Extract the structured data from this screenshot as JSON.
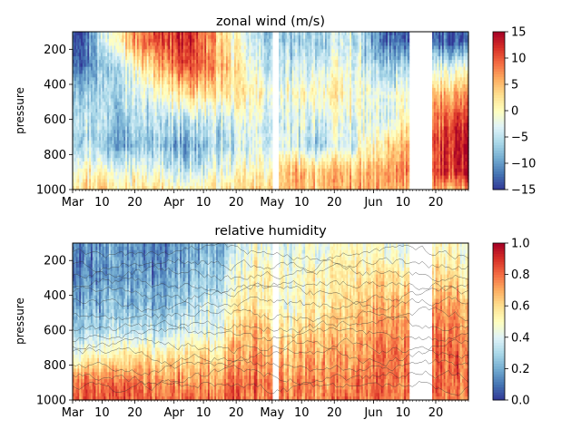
{
  "chart_data": [
    {
      "type": "heatmap",
      "title": "zonal wind (m/s)",
      "xlabel": "",
      "ylabel": "pressure",
      "x_range": [
        "2000-03-01",
        "2000-06-30"
      ],
      "x_ticks": [
        {
          "date": "2000-03-01",
          "label": "Mar"
        },
        {
          "date": "2000-03-10",
          "label": "10"
        },
        {
          "date": "2000-03-20",
          "label": "20"
        },
        {
          "date": "2000-04-01",
          "label": "Apr"
        },
        {
          "date": "2000-04-10",
          "label": "10"
        },
        {
          "date": "2000-04-20",
          "label": "20"
        },
        {
          "date": "2000-05-01",
          "label": "May"
        },
        {
          "date": "2000-05-10",
          "label": "10"
        },
        {
          "date": "2000-05-20",
          "label": "20"
        },
        {
          "date": "2000-06-01",
          "label": "Jun"
        },
        {
          "date": "2000-06-10",
          "label": "10"
        },
        {
          "date": "2000-06-20",
          "label": "20"
        }
      ],
      "y_range": [
        1000,
        100
      ],
      "y_inverted": true,
      "y_ticks": [
        200,
        400,
        600,
        800,
        1000
      ],
      "colormap": "RdYlBu_r",
      "colorbar": {
        "min": -15,
        "max": 15,
        "ticks": [
          -15,
          -10,
          -5,
          0,
          5,
          10,
          15
        ]
      },
      "missing_periods": [
        [
          "2000-05-01",
          "2000-05-02"
        ],
        [
          "2000-06-12",
          "2000-06-18"
        ]
      ],
      "profiles": [
        {
          "date": "2000-03-05",
          "pressure": [
            150,
            300,
            450,
            600,
            750,
            900,
            1000
          ],
          "values": [
            -12,
            -11,
            -6,
            -4,
            -5,
            1,
            4
          ]
        },
        {
          "date": "2000-03-15",
          "pressure": [
            150,
            300,
            450,
            600,
            750,
            900,
            1000
          ],
          "values": [
            3,
            -4,
            -5,
            -6,
            -8,
            -1,
            3
          ]
        },
        {
          "date": "2000-03-25",
          "pressure": [
            150,
            300,
            450,
            600,
            750,
            900,
            1000
          ],
          "values": [
            10,
            3,
            -2,
            -5,
            -7,
            -2,
            2
          ]
        },
        {
          "date": "2000-04-05",
          "pressure": [
            150,
            300,
            450,
            600,
            750,
            900,
            1000
          ],
          "values": [
            13,
            12,
            4,
            -4,
            -9,
            -4,
            1
          ]
        },
        {
          "date": "2000-04-15",
          "pressure": [
            150,
            300,
            450,
            600,
            750,
            900,
            1000
          ],
          "values": [
            4,
            6,
            2,
            -4,
            -6,
            -2,
            2
          ]
        },
        {
          "date": "2000-04-25",
          "pressure": [
            150,
            300,
            450,
            600,
            750,
            900,
            1000
          ],
          "values": [
            -5,
            -3,
            1,
            -2,
            -4,
            0,
            3
          ]
        },
        {
          "date": "2000-05-05",
          "pressure": [
            150,
            300,
            450,
            600,
            750,
            900,
            1000
          ],
          "values": [
            -8,
            -5,
            -2,
            -5,
            -3,
            4,
            5
          ]
        },
        {
          "date": "2000-05-15",
          "pressure": [
            150,
            300,
            450,
            600,
            750,
            900,
            1000
          ],
          "values": [
            -6,
            -3,
            1,
            -3,
            -6,
            5,
            4
          ]
        },
        {
          "date": "2000-05-25",
          "pressure": [
            150,
            300,
            450,
            600,
            750,
            900,
            1000
          ],
          "values": [
            -4,
            -2,
            0,
            -2,
            -3,
            5,
            6
          ]
        },
        {
          "date": "2000-06-05",
          "pressure": [
            150,
            300,
            450,
            600,
            750,
            900,
            1000
          ],
          "values": [
            -13,
            -8,
            -3,
            -4,
            2,
            6,
            5
          ]
        },
        {
          "date": "2000-06-25",
          "pressure": [
            150,
            300,
            450,
            600,
            750,
            900,
            1000
          ],
          "values": [
            -13,
            -2,
            6,
            11,
            13,
            12,
            6
          ]
        }
      ]
    },
    {
      "type": "heatmap",
      "title": "relative humidity",
      "xlabel": "",
      "ylabel": "pressure",
      "x_range": [
        "2000-03-01",
        "2000-06-30"
      ],
      "x_ticks": [
        {
          "date": "2000-03-01",
          "label": "Mar"
        },
        {
          "date": "2000-03-10",
          "label": "10"
        },
        {
          "date": "2000-03-20",
          "label": "20"
        },
        {
          "date": "2000-04-01",
          "label": "Apr"
        },
        {
          "date": "2000-04-10",
          "label": "10"
        },
        {
          "date": "2000-04-20",
          "label": "20"
        },
        {
          "date": "2000-05-01",
          "label": "May"
        },
        {
          "date": "2000-05-10",
          "label": "10"
        },
        {
          "date": "2000-05-20",
          "label": "20"
        },
        {
          "date": "2000-06-01",
          "label": "Jun"
        },
        {
          "date": "2000-06-10",
          "label": "10"
        },
        {
          "date": "2000-06-20",
          "label": "20"
        }
      ],
      "y_range": [
        1000,
        100
      ],
      "y_inverted": true,
      "y_ticks": [
        200,
        400,
        600,
        800,
        1000
      ],
      "colormap": "RdYlBu_r",
      "colorbar": {
        "min": 0.0,
        "max": 1.0,
        "ticks": [
          "0.0",
          "0.2",
          "0.4",
          "0.6",
          "0.8",
          "1.0"
        ]
      },
      "contour_overlay": true,
      "missing_periods": [
        [
          "2000-05-01",
          "2000-05-02"
        ],
        [
          "2000-06-12",
          "2000-06-18"
        ]
      ],
      "profiles": [
        {
          "date": "2000-03-05",
          "pressure": [
            150,
            300,
            450,
            600,
            750,
            900,
            1000
          ],
          "values": [
            0.15,
            0.15,
            0.2,
            0.3,
            0.5,
            0.8,
            0.85
          ]
        },
        {
          "date": "2000-03-15",
          "pressure": [
            150,
            300,
            450,
            600,
            750,
            900,
            1000
          ],
          "values": [
            0.2,
            0.2,
            0.25,
            0.35,
            0.55,
            0.8,
            0.85
          ]
        },
        {
          "date": "2000-03-25",
          "pressure": [
            150,
            300,
            450,
            600,
            750,
            900,
            1000
          ],
          "values": [
            0.1,
            0.15,
            0.2,
            0.3,
            0.55,
            0.75,
            0.8
          ]
        },
        {
          "date": "2000-04-05",
          "pressure": [
            150,
            300,
            450,
            600,
            750,
            900,
            1000
          ],
          "values": [
            0.2,
            0.25,
            0.3,
            0.4,
            0.6,
            0.75,
            0.8
          ]
        },
        {
          "date": "2000-04-15",
          "pressure": [
            150,
            300,
            450,
            600,
            750,
            900,
            1000
          ],
          "values": [
            0.25,
            0.3,
            0.4,
            0.45,
            0.6,
            0.75,
            0.8
          ]
        },
        {
          "date": "2000-04-25",
          "pressure": [
            150,
            300,
            450,
            600,
            750,
            900,
            1000
          ],
          "values": [
            0.45,
            0.55,
            0.6,
            0.7,
            0.75,
            0.8,
            0.8
          ]
        },
        {
          "date": "2000-05-05",
          "pressure": [
            150,
            300,
            450,
            600,
            750,
            900,
            1000
          ],
          "values": [
            0.4,
            0.5,
            0.45,
            0.55,
            0.65,
            0.75,
            0.75
          ]
        },
        {
          "date": "2000-05-15",
          "pressure": [
            150,
            300,
            450,
            600,
            750,
            900,
            1000
          ],
          "values": [
            0.45,
            0.5,
            0.55,
            0.6,
            0.7,
            0.75,
            0.75
          ]
        },
        {
          "date": "2000-05-25",
          "pressure": [
            150,
            300,
            450,
            600,
            750,
            900,
            1000
          ],
          "values": [
            0.5,
            0.55,
            0.6,
            0.65,
            0.7,
            0.75,
            0.8
          ]
        },
        {
          "date": "2000-06-05",
          "pressure": [
            150,
            300,
            450,
            600,
            750,
            900,
            1000
          ],
          "values": [
            0.45,
            0.6,
            0.7,
            0.75,
            0.8,
            0.8,
            0.8
          ]
        },
        {
          "date": "2000-06-25",
          "pressure": [
            150,
            300,
            450,
            600,
            750,
            900,
            1000
          ],
          "values": [
            0.5,
            0.6,
            0.7,
            0.75,
            0.8,
            0.8,
            0.75
          ]
        }
      ]
    }
  ]
}
